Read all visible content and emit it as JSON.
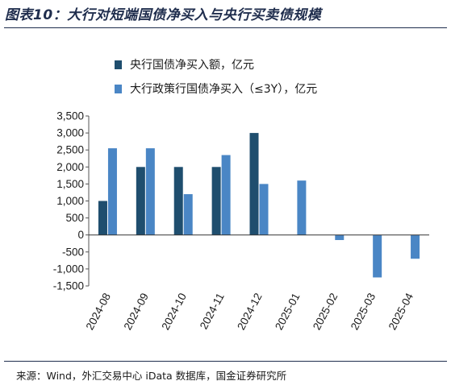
{
  "title": "图表10：大行对短端国债净买入与央行买卖债规模",
  "source": "来源：Wind，外汇交易中心 iData 数据库，国金证券研究所",
  "chart_data": {
    "type": "bar",
    "categories": [
      "2024-08",
      "2024-09",
      "2024-10",
      "2024-11",
      "2024-12",
      "2025-01",
      "2025-02",
      "2025-03",
      "2025-04"
    ],
    "series": [
      {
        "name": "央行国债净买入额，亿元",
        "color": "#1f4e6e",
        "values": [
          1000,
          2000,
          2000,
          2000,
          3000,
          null,
          null,
          null,
          null
        ]
      },
      {
        "name": "大行政策行国债净买入（≤3Y），亿元",
        "color": "#4a86c5",
        "values": [
          2550,
          2550,
          1200,
          2350,
          1500,
          1600,
          -150,
          -1250,
          -700
        ]
      }
    ],
    "ylim": [
      -1500,
      3500
    ],
    "yticks": [
      -1500,
      -1000,
      -500,
      0,
      500,
      1000,
      1500,
      2000,
      2500,
      3000,
      3500
    ],
    "ytick_labels": [
      "-1,500",
      "-1,000",
      "-500",
      "0",
      "500",
      "1,000",
      "1,500",
      "2,000",
      "2,500",
      "3,000",
      "3,500"
    ],
    "legend_position": "top-left"
  }
}
